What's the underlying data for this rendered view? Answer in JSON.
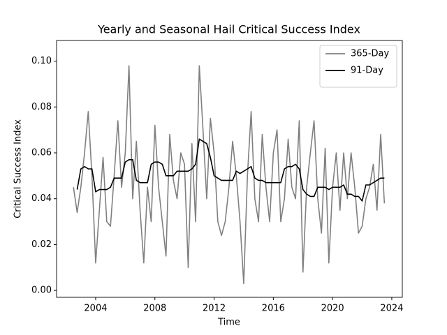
{
  "chart_data": {
    "type": "line",
    "title": "Yearly and Seasonal Hail Critical Success Index",
    "x_label": "Time",
    "y_label": "Critical Success Index",
    "xlim": [
      2001.36,
      2024.71
    ],
    "ylim": [
      -0.003,
      0.109
    ],
    "xticks": [
      2004,
      2008,
      2012,
      2016,
      2020,
      2024
    ],
    "yticks": [
      {
        "value": 0,
        "label": "0.00"
      },
      {
        "value": 0.02,
        "label": "0.02"
      },
      {
        "value": 0.04,
        "label": "0.04"
      },
      {
        "value": 0.06,
        "label": "0.06"
      },
      {
        "value": 0.08,
        "label": "0.08"
      },
      {
        "value": 0.1,
        "label": "0.10"
      }
    ],
    "legend": "upper right",
    "x": [
      2002.5,
      2002.75,
      2003,
      2003.25,
      2003.5,
      2003.75,
      2004,
      2004.25,
      2004.5,
      2004.75,
      2005,
      2005.25,
      2005.5,
      2005.75,
      2006,
      2006.25,
      2006.5,
      2006.75,
      2007,
      2007.25,
      2007.5,
      2007.75,
      2008,
      2008.25,
      2008.5,
      2008.75,
      2009,
      2009.25,
      2009.5,
      2009.75,
      2010,
      2010.25,
      2010.5,
      2010.75,
      2011,
      2011.25,
      2011.5,
      2011.75,
      2012,
      2012.25,
      2012.5,
      2012.75,
      2013,
      2013.25,
      2013.5,
      2013.75,
      2014,
      2014.25,
      2014.5,
      2014.75,
      2015,
      2015.25,
      2015.5,
      2015.75,
      2016,
      2016.25,
      2016.5,
      2016.75,
      2017,
      2017.25,
      2017.5,
      2017.75,
      2018,
      2018.25,
      2018.5,
      2018.75,
      2019,
      2019.25,
      2019.5,
      2019.75,
      2020,
      2020.25,
      2020.5,
      2020.75,
      2021,
      2021.25,
      2021.5,
      2021.75,
      2022,
      2022.25,
      2022.5,
      2022.75,
      2023,
      2023.25,
      2023.5
    ],
    "series": [
      {
        "name": "365-Day",
        "color": "#808080",
        "values": [
          0.045,
          0.034,
          0.045,
          0.06,
          0.078,
          0.05,
          0.012,
          0.035,
          0.058,
          0.03,
          0.028,
          0.05,
          0.074,
          0.045,
          0.06,
          0.098,
          0.04,
          0.065,
          0.035,
          0.012,
          0.045,
          0.03,
          0.072,
          0.045,
          0.03,
          0.015,
          0.068,
          0.048,
          0.04,
          0.06,
          0.055,
          0.01,
          0.064,
          0.03,
          0.098,
          0.07,
          0.04,
          0.075,
          0.06,
          0.03,
          0.024,
          0.03,
          0.045,
          0.065,
          0.05,
          0.03,
          0.003,
          0.05,
          0.078,
          0.04,
          0.03,
          0.068,
          0.045,
          0.03,
          0.06,
          0.07,
          0.03,
          0.04,
          0.066,
          0.045,
          0.04,
          0.074,
          0.008,
          0.045,
          0.06,
          0.074,
          0.04,
          0.025,
          0.062,
          0.012,
          0.045,
          0.06,
          0.035,
          0.06,
          0.04,
          0.06,
          0.045,
          0.025,
          0.028,
          0.04,
          0.045,
          0.055,
          0.035,
          0.068,
          0.038
        ]
      },
      {
        "name": "91-Day",
        "color": "#000000",
        "values": [
          null,
          0.044,
          0.053,
          0.054,
          0.053,
          0.053,
          0.043,
          0.044,
          0.044,
          0.044,
          0.045,
          0.049,
          0.049,
          0.049,
          0.056,
          0.057,
          0.057,
          0.048,
          0.047,
          0.047,
          0.047,
          0.055,
          0.056,
          0.056,
          0.055,
          0.05,
          0.05,
          0.05,
          0.052,
          0.052,
          0.052,
          0.052,
          0.053,
          0.055,
          0.066,
          0.065,
          0.064,
          0.058,
          0.05,
          0.049,
          0.048,
          0.048,
          0.048,
          0.048,
          0.052,
          0.051,
          0.052,
          0.053,
          0.054,
          0.049,
          0.048,
          0.048,
          0.047,
          0.047,
          0.047,
          0.047,
          0.047,
          0.053,
          0.054,
          0.054,
          0.055,
          0.053,
          0.044,
          0.042,
          0.041,
          0.041,
          0.045,
          0.045,
          0.045,
          0.044,
          0.045,
          0.045,
          0.045,
          0.046,
          0.042,
          0.042,
          0.041,
          0.041,
          0.039,
          0.046,
          0.046,
          0.047,
          0.048,
          0.049,
          0.049
        ]
      }
    ]
  }
}
